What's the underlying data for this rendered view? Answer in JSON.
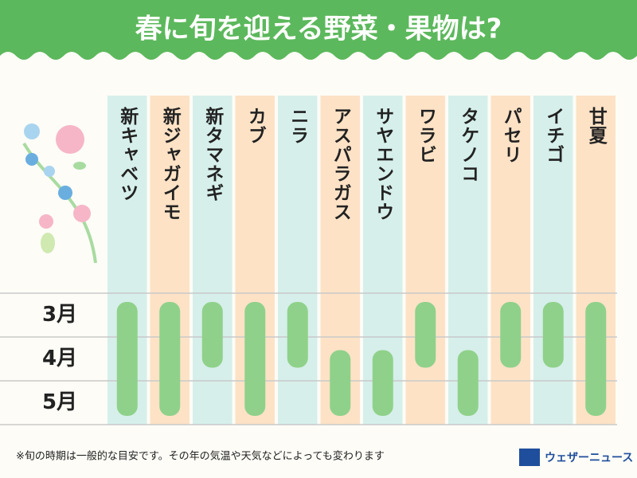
{
  "title": "春に旬を迎える野菜・果物は?",
  "chart_data": {
    "type": "range",
    "categories": [
      "新キャベツ",
      "新ジャガイモ",
      "新タマネギ",
      "カブ",
      "ニラ",
      "アスパラガス",
      "サヤエンドウ",
      "ワラビ",
      "タケノコ",
      "パセリ",
      "イチゴ",
      "甘夏"
    ],
    "start": [
      2.7,
      2.7,
      2.7,
      2.7,
      2.7,
      3.8,
      3.8,
      2.7,
      3.8,
      2.7,
      2.7,
      2.7
    ],
    "end": [
      5.3,
      5.3,
      4.2,
      5.3,
      4.2,
      5.3,
      5.3,
      4.2,
      5.3,
      4.2,
      4.2,
      5.3
    ],
    "color": "#8fd18a",
    "column_colors": [
      "#d6efea",
      "#fde2c6"
    ],
    "ylim": [
      2.5,
      5.5
    ],
    "yticks": [
      {
        "value": 3,
        "label": "3月"
      },
      {
        "value": 4,
        "label": "4月"
      },
      {
        "value": 5,
        "label": "5月"
      }
    ],
    "ygrid": [
      2.5,
      3.5,
      4.5,
      5.5
    ]
  },
  "footnote": "※旬の時期は一般的な目安です。その年の気温や天気などによっても変わります",
  "logo": "ウェザーニュース"
}
